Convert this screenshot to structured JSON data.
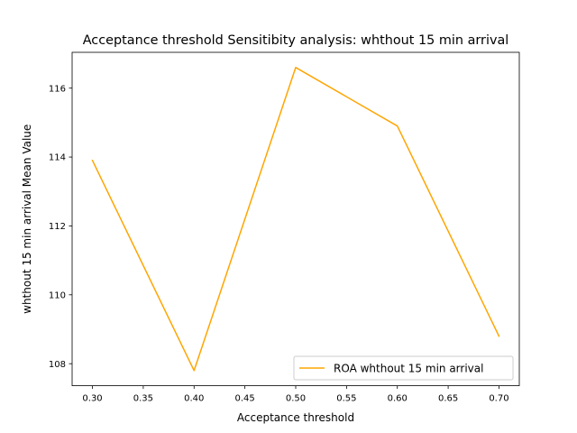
{
  "chart_data": {
    "type": "line",
    "title": "Acceptance threshold Sensitibity analysis: whthout 15 min arrival",
    "xlabel": "Acceptance threshold",
    "ylabel": "whthout 15 min arrival Mean Value",
    "x": [
      0.3,
      0.4,
      0.5,
      0.6,
      0.7
    ],
    "series": [
      {
        "name": "ROA whthout 15 min arrival",
        "color": "#ffa500",
        "values": [
          113.9,
          107.8,
          116.6,
          114.9,
          108.8
        ]
      }
    ],
    "xlim": [
      0.28,
      0.72
    ],
    "ylim": [
      107.36,
      117.04
    ],
    "xticks": [
      0.3,
      0.35,
      0.4,
      0.45,
      0.5,
      0.55,
      0.6,
      0.65,
      0.7
    ],
    "xtick_labels": [
      "0.30",
      "0.35",
      "0.40",
      "0.45",
      "0.50",
      "0.55",
      "0.60",
      "0.65",
      "0.70"
    ],
    "yticks": [
      108,
      110,
      112,
      114,
      116
    ],
    "ytick_labels": [
      "108",
      "110",
      "112",
      "114",
      "116"
    ],
    "grid": false,
    "legend_position": "lower right"
  }
}
